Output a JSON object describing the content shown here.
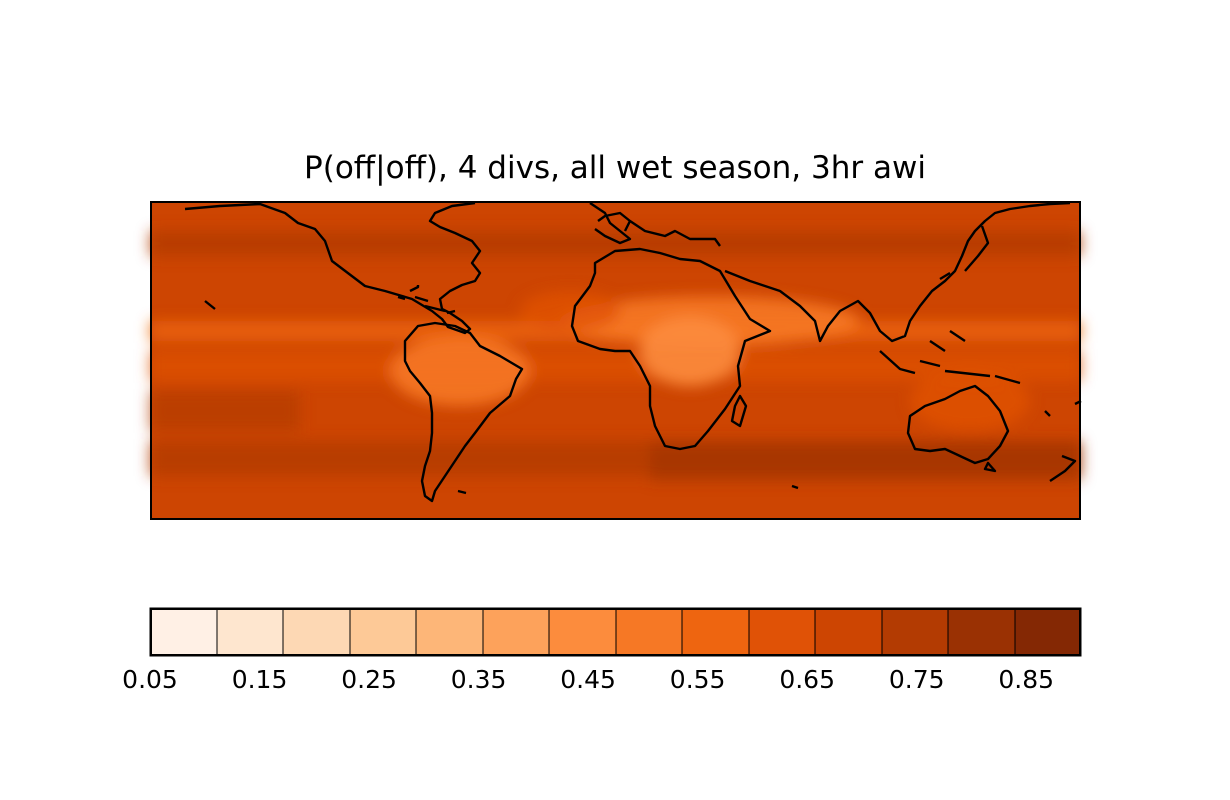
{
  "title": "P(off|off), 4 divs, all wet season, 3hr awi",
  "colors": {
    "ocean_base": "#d94801",
    "coastline": "#000000"
  },
  "map": {
    "projection": "cylindrical",
    "lon_range": [
      -180,
      180
    ],
    "lat_range": [
      -60,
      60
    ],
    "coastlines": true
  },
  "colorbar": {
    "levels": [
      0.05,
      0.1,
      0.15,
      0.2,
      0.25,
      0.3,
      0.35,
      0.4,
      0.45,
      0.5,
      0.55,
      0.6,
      0.65,
      0.7,
      0.75,
      0.8,
      0.85,
      0.9
    ],
    "tick_labels": [
      "0.05",
      "0.15",
      "0.25",
      "0.35",
      "0.45",
      "0.55",
      "0.65",
      "0.75",
      "0.85"
    ],
    "colors": [
      "#fff0e5",
      "#fee6cf",
      "#fdd8b4",
      "#fdc997",
      "#fdb678",
      "#fda25b",
      "#fc8c3d",
      "#f67825",
      "#ee6510",
      "#e05206",
      "#cd4502",
      "#b33b02",
      "#9a3103",
      "#842804"
    ]
  }
}
